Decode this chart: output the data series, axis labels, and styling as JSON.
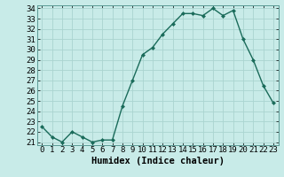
{
  "x": [
    0,
    1,
    2,
    3,
    4,
    5,
    6,
    7,
    8,
    9,
    10,
    11,
    12,
    13,
    14,
    15,
    16,
    17,
    18,
    19,
    20,
    21,
    22,
    23
  ],
  "y": [
    22.5,
    21.5,
    21.0,
    22.0,
    21.5,
    21.0,
    21.2,
    21.2,
    24.5,
    27.0,
    29.5,
    30.2,
    31.5,
    32.5,
    33.5,
    33.5,
    33.3,
    34.0,
    33.3,
    33.8,
    31.0,
    29.0,
    26.5,
    24.8
  ],
  "line_color": "#1a6b5a",
  "marker": "D",
  "marker_size": 2.0,
  "bg_color": "#c8ebe8",
  "grid_color": "#aad4d0",
  "xlabel": "Humidex (Indice chaleur)",
  "ylim_min": 21,
  "ylim_max": 34,
  "xlim_min": 0,
  "xlim_max": 23,
  "yticks": [
    21,
    22,
    23,
    24,
    25,
    26,
    27,
    28,
    29,
    30,
    31,
    32,
    33,
    34
  ],
  "xticks": [
    0,
    1,
    2,
    3,
    4,
    5,
    6,
    7,
    8,
    9,
    10,
    11,
    12,
    13,
    14,
    15,
    16,
    17,
    18,
    19,
    20,
    21,
    22,
    23
  ],
  "xlabel_fontsize": 7.5,
  "tick_fontsize": 6.5,
  "line_width": 1.0
}
